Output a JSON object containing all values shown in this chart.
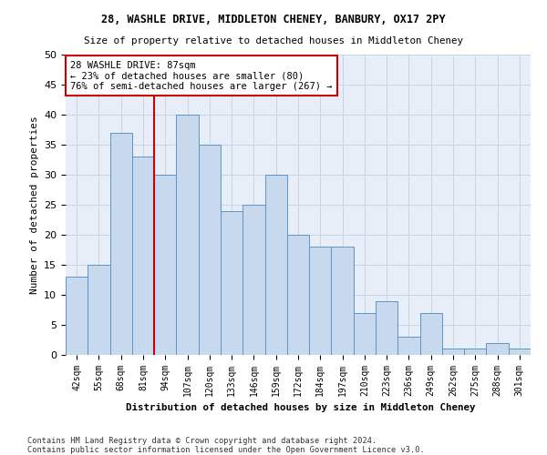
{
  "title1": "28, WASHLE DRIVE, MIDDLETON CHENEY, BANBURY, OX17 2PY",
  "title2": "Size of property relative to detached houses in Middleton Cheney",
  "xlabel": "Distribution of detached houses by size in Middleton Cheney",
  "ylabel": "Number of detached properties",
  "categories": [
    "42sqm",
    "55sqm",
    "68sqm",
    "81sqm",
    "94sqm",
    "107sqm",
    "120sqm",
    "133sqm",
    "146sqm",
    "159sqm",
    "172sqm",
    "184sqm",
    "197sqm",
    "210sqm",
    "223sqm",
    "236sqm",
    "249sqm",
    "262sqm",
    "275sqm",
    "288sqm",
    "301sqm"
  ],
  "values": [
    13,
    15,
    37,
    33,
    30,
    40,
    35,
    24,
    25,
    30,
    20,
    18,
    18,
    7,
    9,
    3,
    7,
    1,
    1,
    2,
    1
  ],
  "bar_color": "#c8d9ee",
  "bar_edge_color": "#5a96c8",
  "grid_color": "#c8d4e8",
  "bg_color": "#e8eef8",
  "vline_color": "#cc0000",
  "annotation_text": "28 WASHLE DRIVE: 87sqm\n← 23% of detached houses are smaller (80)\n76% of semi-detached houses are larger (267) →",
  "annotation_box_color": "#cc0000",
  "footer1": "Contains HM Land Registry data © Crown copyright and database right 2024.",
  "footer2": "Contains public sector information licensed under the Open Government Licence v3.0.",
  "ylim": [
    0,
    50
  ],
  "yticks": [
    0,
    5,
    10,
    15,
    20,
    25,
    30,
    35,
    40,
    45,
    50
  ]
}
